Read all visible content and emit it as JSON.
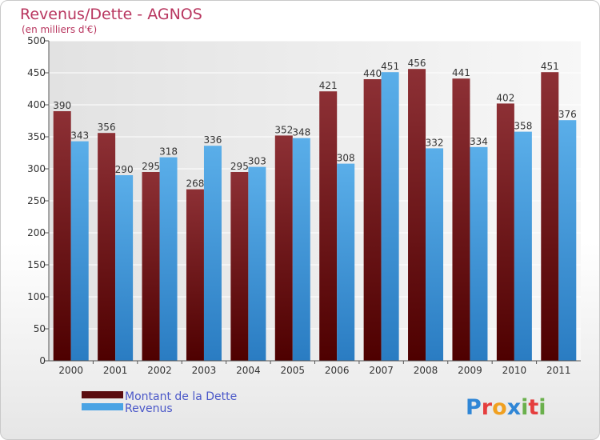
{
  "chart_data": {
    "type": "bar",
    "title": "Revenus/Dette - AGNOS",
    "subtitle": "(en milliers d'€)",
    "categories": [
      "2000",
      "2001",
      "2002",
      "2003",
      "2004",
      "2005",
      "2006",
      "2007",
      "2008",
      "2009",
      "2010",
      "2011"
    ],
    "series": [
      {
        "name": "Montant de la Dette",
        "values": [
          390,
          356,
          295,
          268,
          295,
          352,
          421,
          440,
          456,
          441,
          402,
          451
        ],
        "color": "#8b2a2f"
      },
      {
        "name": "Revenus",
        "values": [
          343,
          290,
          318,
          336,
          303,
          348,
          308,
          451,
          332,
          334,
          358,
          376
        ],
        "color": "#4aa3e4"
      }
    ],
    "ylim": [
      0,
      500
    ],
    "yticks": [
      0,
      50,
      100,
      150,
      200,
      250,
      300,
      350,
      400,
      450,
      500
    ],
    "grid": true,
    "legend_position": "bottom-left"
  },
  "logo": {
    "letters": [
      "P",
      "r",
      "o",
      "x",
      "i",
      "t",
      "i"
    ],
    "colors": [
      "#2f86d6",
      "#e53e3e",
      "#f0a020",
      "#2f86d6",
      "#6ab04c",
      "#e53e3e",
      "#6ab04c"
    ]
  }
}
